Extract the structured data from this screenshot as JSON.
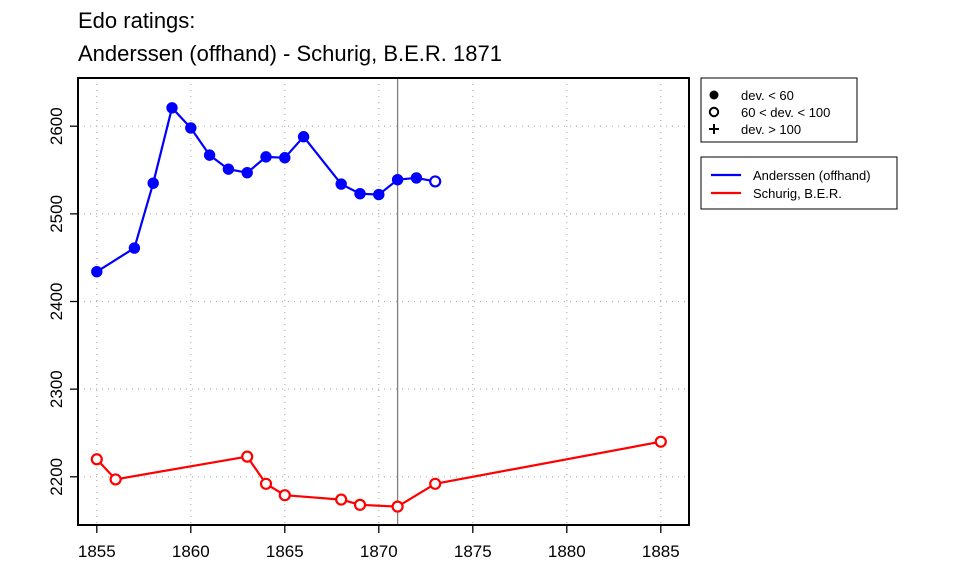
{
  "chart_data": {
    "type": "line",
    "title_line1": "Edo ratings:",
    "title_line2": "Anderssen (offhand) - Schurig, B.E.R. 1871",
    "xlabel": "",
    "ylabel": "",
    "xlim": [
      1854,
      1886.5
    ],
    "ylim": [
      2145,
      2655
    ],
    "x_ticks": [
      1855,
      1860,
      1865,
      1870,
      1875,
      1880,
      1885
    ],
    "y_ticks": [
      2200,
      2300,
      2400,
      2500,
      2600
    ],
    "grid": true,
    "vertical_marker_x": 1871,
    "deviation_legend": [
      {
        "marker": "filled",
        "label": "dev. < 60"
      },
      {
        "marker": "open",
        "label": "60 < dev. < 100"
      },
      {
        "marker": "plus",
        "label": "dev. > 100"
      }
    ],
    "series": [
      {
        "name": "Anderssen (offhand)",
        "color": "#0000ff",
        "points": [
          {
            "x": 1855,
            "y": 2434,
            "marker": "filled"
          },
          {
            "x": 1857,
            "y": 2461,
            "marker": "filled"
          },
          {
            "x": 1858,
            "y": 2535,
            "marker": "filled"
          },
          {
            "x": 1859,
            "y": 2621,
            "marker": "filled"
          },
          {
            "x": 1860,
            "y": 2598,
            "marker": "filled"
          },
          {
            "x": 1861,
            "y": 2567,
            "marker": "filled"
          },
          {
            "x": 1862,
            "y": 2551,
            "marker": "filled"
          },
          {
            "x": 1863,
            "y": 2547,
            "marker": "filled"
          },
          {
            "x": 1864,
            "y": 2565,
            "marker": "filled"
          },
          {
            "x": 1865,
            "y": 2564,
            "marker": "filled"
          },
          {
            "x": 1866,
            "y": 2588,
            "marker": "filled"
          },
          {
            "x": 1868,
            "y": 2534,
            "marker": "filled"
          },
          {
            "x": 1869,
            "y": 2523,
            "marker": "filled"
          },
          {
            "x": 1870,
            "y": 2522,
            "marker": "filled"
          },
          {
            "x": 1871,
            "y": 2539,
            "marker": "filled"
          },
          {
            "x": 1872,
            "y": 2541,
            "marker": "filled"
          },
          {
            "x": 1873,
            "y": 2537,
            "marker": "open"
          }
        ]
      },
      {
        "name": "Schurig, B.E.R.",
        "color": "#ff0000",
        "points": [
          {
            "x": 1855,
            "y": 2220,
            "marker": "open"
          },
          {
            "x": 1856,
            "y": 2197,
            "marker": "open"
          },
          {
            "x": 1863,
            "y": 2223,
            "marker": "open"
          },
          {
            "x": 1864,
            "y": 2192,
            "marker": "open"
          },
          {
            "x": 1865,
            "y": 2179,
            "marker": "open"
          },
          {
            "x": 1868,
            "y": 2174,
            "marker": "open"
          },
          {
            "x": 1869,
            "y": 2168,
            "marker": "open"
          },
          {
            "x": 1871,
            "y": 2166,
            "marker": "open"
          },
          {
            "x": 1873,
            "y": 2192,
            "marker": "open"
          },
          {
            "x": 1885,
            "y": 2240,
            "marker": "open"
          }
        ]
      }
    ]
  }
}
